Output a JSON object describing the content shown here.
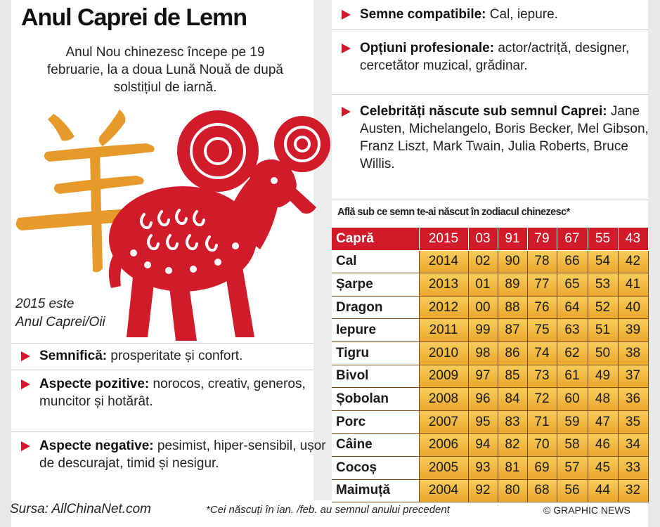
{
  "title": "Anul Caprei de Lemn",
  "intro": "Anul Nou chinezesc începe pe 19 februarie, la a doua Lună Nouă de după solstițiul de iarnă.",
  "year_note": {
    "line1": "2015 este",
    "line2": "Anul Caprei/Oii"
  },
  "colors": {
    "accent_red": "#d11a2a",
    "cell_gold": "#f0b440",
    "character_gold": "#e59a2a"
  },
  "left_bullets": [
    {
      "label": "Semnifică:",
      "text": " prosperitate și confort."
    },
    {
      "label": "Aspecte pozitive:",
      "text": " norocos, creativ, generos, muncitor și hotărât."
    },
    {
      "label": "Aspecte negative:",
      "text": " pesimist, hiper-sensibil, ușor de descurajat, timid și nesigur."
    }
  ],
  "right_bullets": [
    {
      "label": "Semne compatibile:",
      "text": " Cal, iepure."
    },
    {
      "label": "Opțiuni profesionale:",
      "text": " actor/actriță, designer, cercetător muzical, grădinar."
    },
    {
      "label": "Celebrități născute sub semnul Caprei:",
      "text": " Jane Austen, Michelangelo, Boris Becker, Mel Gibson, Franz Liszt, Mark Twain, Julia Roberts, Bruce Willis."
    }
  ],
  "table": {
    "title": "Află sub ce semn te-ai născut în zodiacul chinezesc*",
    "rows": [
      {
        "sign": "Capră",
        "years": [
          "2015",
          "03",
          "91",
          "79",
          "67",
          "55",
          "43"
        ]
      },
      {
        "sign": "Cal",
        "years": [
          "2014",
          "02",
          "90",
          "78",
          "66",
          "54",
          "42"
        ]
      },
      {
        "sign": "Șarpe",
        "years": [
          "2013",
          "01",
          "89",
          "77",
          "65",
          "53",
          "41"
        ]
      },
      {
        "sign": "Dragon",
        "years": [
          "2012",
          "00",
          "88",
          "76",
          "64",
          "52",
          "40"
        ]
      },
      {
        "sign": "Iepure",
        "years": [
          "2011",
          "99",
          "87",
          "75",
          "63",
          "51",
          "39"
        ]
      },
      {
        "sign": "Tigru",
        "years": [
          "2010",
          "98",
          "86",
          "74",
          "62",
          "50",
          "38"
        ]
      },
      {
        "sign": "Bivol",
        "years": [
          "2009",
          "97",
          "85",
          "73",
          "61",
          "49",
          "37"
        ]
      },
      {
        "sign": "Șobolan",
        "years": [
          "2008",
          "96",
          "84",
          "72",
          "60",
          "48",
          "36"
        ]
      },
      {
        "sign": "Porc",
        "years": [
          "2007",
          "95",
          "83",
          "71",
          "59",
          "47",
          "35"
        ]
      },
      {
        "sign": "Câine",
        "years": [
          "2006",
          "94",
          "82",
          "70",
          "58",
          "46",
          "34"
        ]
      },
      {
        "sign": "Cocoș",
        "years": [
          "2005",
          "93",
          "81",
          "69",
          "57",
          "45",
          "33"
        ]
      },
      {
        "sign": "Maimuță",
        "years": [
          "2004",
          "92",
          "80",
          "68",
          "56",
          "44",
          "32"
        ]
      }
    ]
  },
  "footer": {
    "source": "Sursa: AllChinaNet.com",
    "footnote": "*Cei născuți în ian. /feb. au semnul anului precedent",
    "credit": "© GRAPHIC NEWS"
  }
}
